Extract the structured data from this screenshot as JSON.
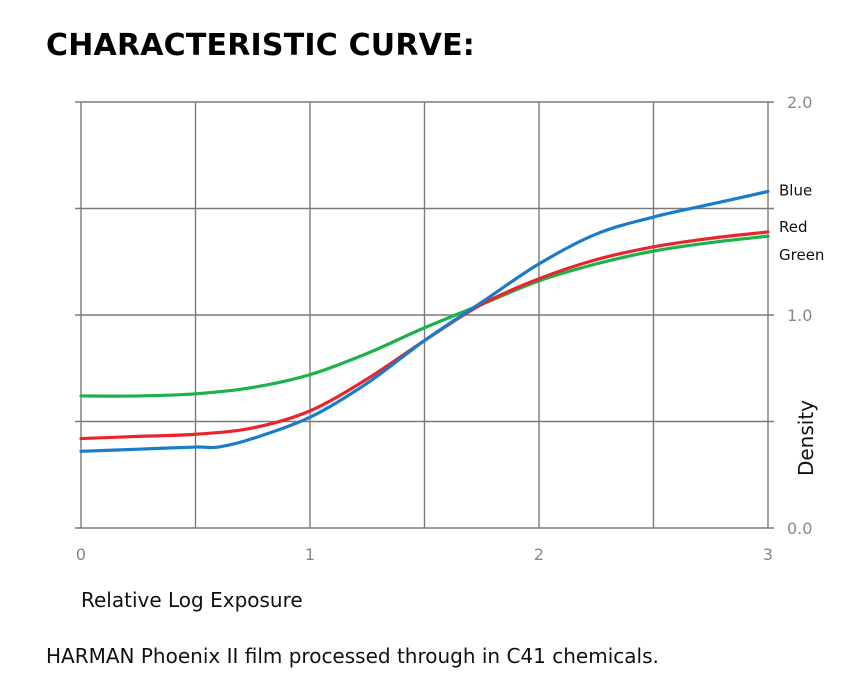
{
  "header": {
    "title": "CHARACTERISTIC CURVE:"
  },
  "caption": "HARMAN Phoenix II film processed through in C41 chemicals.",
  "chart_data": {
    "type": "line",
    "title": "CHARACTERISTIC CURVE:",
    "xlabel": "Relative Log Exposure",
    "ylabel": "Density",
    "xlim": [
      0,
      3
    ],
    "ylim": [
      0,
      2
    ],
    "x_ticks": [
      0,
      1,
      2,
      3
    ],
    "x_tick_labels": [
      "0",
      "1",
      "2",
      "3"
    ],
    "y_ticks": [
      0,
      1,
      2
    ],
    "y_tick_labels": [
      "0.0",
      "1.0",
      "2.0"
    ],
    "grid": true,
    "grid_x_step": 0.5,
    "grid_y_step": 0.5,
    "y_axis_side": "right",
    "legend": "labels at right end of each curve",
    "series": [
      {
        "name": "Blue",
        "color": "#1a7cc8",
        "x": [
          0,
          0.25,
          0.5,
          0.6,
          0.75,
          1.0,
          1.25,
          1.5,
          1.75,
          2.0,
          2.25,
          2.5,
          2.75,
          3.0
        ],
        "y": [
          0.36,
          0.37,
          0.38,
          0.38,
          0.42,
          0.52,
          0.68,
          0.88,
          1.06,
          1.24,
          1.38,
          1.46,
          1.52,
          1.58
        ]
      },
      {
        "name": "Red",
        "color": "#e8242c",
        "x": [
          0,
          0.25,
          0.5,
          0.75,
          1.0,
          1.25,
          1.5,
          1.75,
          2.0,
          2.25,
          2.5,
          2.75,
          3.0
        ],
        "y": [
          0.42,
          0.43,
          0.44,
          0.47,
          0.55,
          0.7,
          0.88,
          1.05,
          1.17,
          1.26,
          1.32,
          1.36,
          1.39
        ]
      },
      {
        "name": "Green",
        "color": "#1bb24b",
        "x": [
          0,
          0.25,
          0.5,
          0.75,
          1.0,
          1.25,
          1.5,
          1.75,
          2.0,
          2.25,
          2.5,
          2.75,
          3.0
        ],
        "y": [
          0.62,
          0.62,
          0.63,
          0.66,
          0.72,
          0.82,
          0.94,
          1.05,
          1.16,
          1.24,
          1.3,
          1.34,
          1.37
        ]
      }
    ]
  }
}
